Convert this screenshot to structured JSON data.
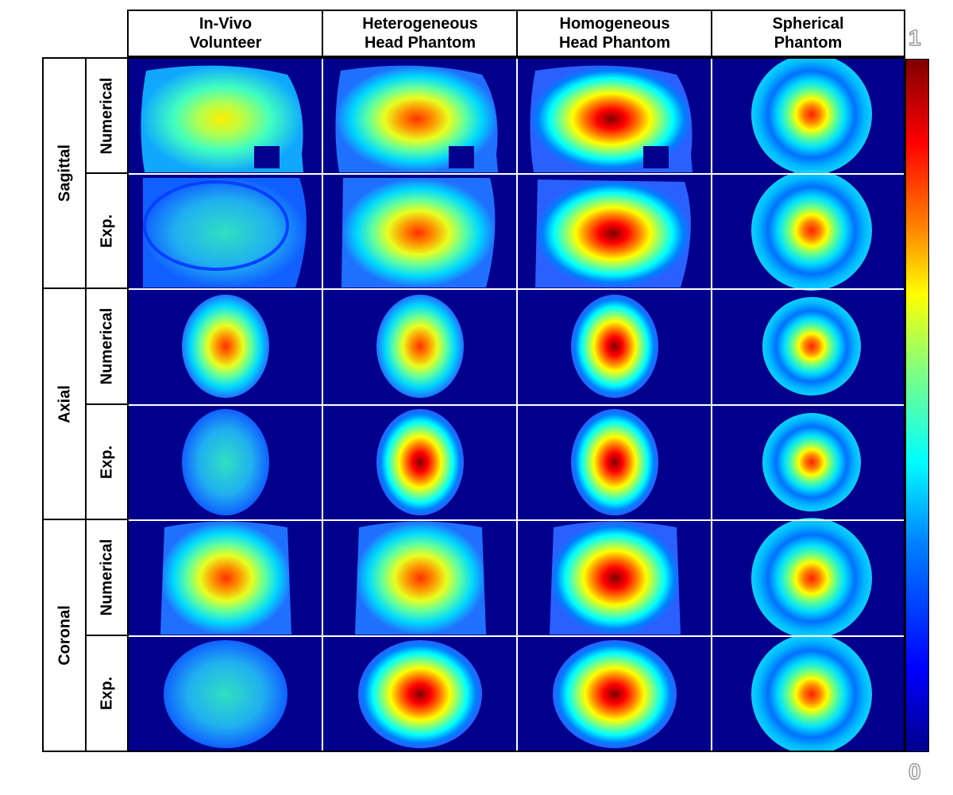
{
  "columns": [
    "In-Vivo\nVolunteer",
    "Heterogeneous\nHead Phantom",
    "Homogeneous\nHead Phantom",
    "Spherical\nPhantom"
  ],
  "orientations": [
    "Sagittal",
    "Axial",
    "Coronal"
  ],
  "rows": [
    "Numerical",
    "Exp."
  ],
  "colorbar": {
    "max_label": "1",
    "min_label": "0",
    "colors": [
      "#00008c",
      "#0000ff",
      "#0080ff",
      "#00ffff",
      "#80ff80",
      "#ffff00",
      "#ff8000",
      "#ff0000",
      "#800000"
    ]
  },
  "colors": {
    "background": "#00008c",
    "separator": "#ffffff"
  }
}
